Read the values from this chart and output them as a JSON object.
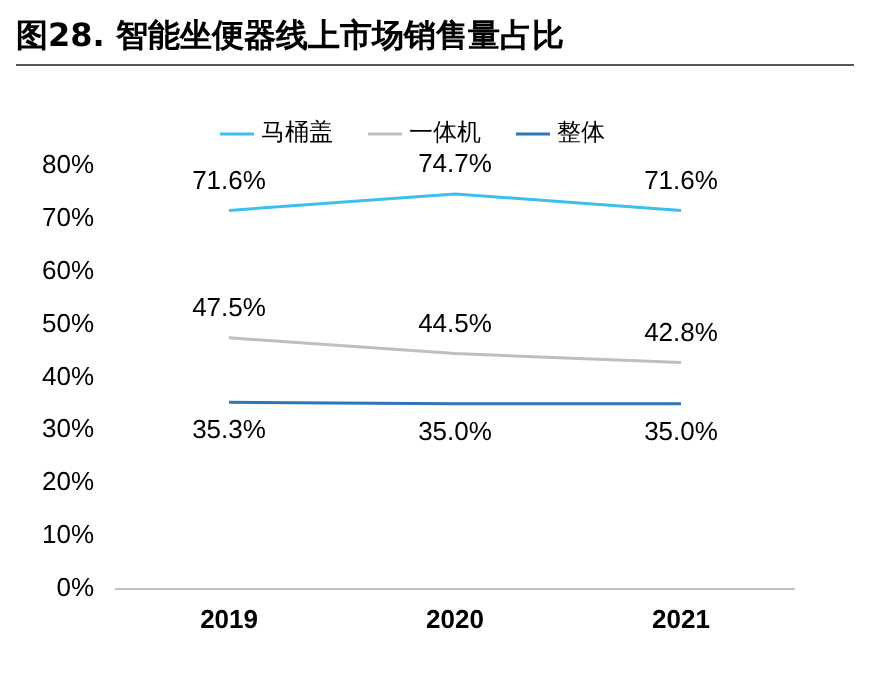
{
  "chart_data": {
    "type": "line",
    "title": "图28. 智能坐便器线上市场销售量占比",
    "categories": [
      "2019",
      "2020",
      "2021"
    ],
    "series": [
      {
        "name": "马桶盖",
        "color": "#3cbfed",
        "values": [
          71.6,
          74.7,
          71.6
        ],
        "value_labels": [
          "71.6%",
          "74.7%",
          "71.6%"
        ]
      },
      {
        "name": "一体机",
        "color": "#bfbfbf",
        "values": [
          47.5,
          44.5,
          42.8
        ],
        "value_labels": [
          "47.5%",
          "44.5%",
          "42.8%"
        ]
      },
      {
        "name": "整体",
        "color": "#2e75b6",
        "values": [
          35.3,
          35.0,
          35.0
        ],
        "value_labels": [
          "35.3%",
          "35.0%",
          "35.0%"
        ]
      }
    ],
    "ylim": [
      0,
      80
    ],
    "yticks": [
      {
        "value": 0,
        "label": "0%"
      },
      {
        "value": 10,
        "label": "10%"
      },
      {
        "value": 20,
        "label": "20%"
      },
      {
        "value": 30,
        "label": "30%"
      },
      {
        "value": 40,
        "label": "40%"
      },
      {
        "value": 50,
        "label": "50%"
      },
      {
        "value": 60,
        "label": "60%"
      },
      {
        "value": 70,
        "label": "70%"
      },
      {
        "value": 80,
        "label": "80%"
      }
    ],
    "legend": "top",
    "grid": false,
    "marker": "none",
    "line_style": "solid"
  }
}
